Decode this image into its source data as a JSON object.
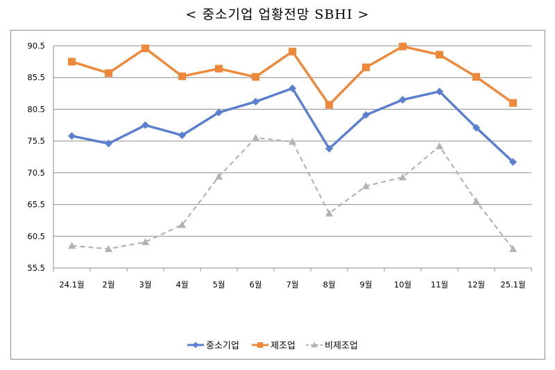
{
  "title": "< 중소기업  업황전망  SBHI  >",
  "chart_data": {
    "type": "line",
    "title": "< 중소기업  업황전망  SBHI  >",
    "categories": [
      "24.1월",
      "2월",
      "3월",
      "4월",
      "5월",
      "6월",
      "7월",
      "8월",
      "9월",
      "10월",
      "11월",
      "12월",
      "25.1월"
    ],
    "ylim": [
      55.5,
      90.5
    ],
    "yticks": [
      55.5,
      60.5,
      65.5,
      70.5,
      75.5,
      80.5,
      85.5,
      90.5
    ],
    "grid": true,
    "legend_position": "bottom",
    "series": [
      {
        "name": "중소기업",
        "color": "#5b7fd0",
        "marker": "diamond",
        "dashed": false,
        "values": [
          76.3,
          75.1,
          78.0,
          76.4,
          80.0,
          81.7,
          83.8,
          74.3,
          79.6,
          82.0,
          83.3,
          77.6,
          72.2
        ]
      },
      {
        "name": "제조업",
        "color": "#f0883a",
        "marker": "square",
        "dashed": false,
        "values": [
          88.0,
          86.2,
          90.1,
          85.7,
          86.9,
          85.6,
          89.6,
          81.2,
          87.1,
          90.4,
          89.1,
          85.6,
          81.5
        ]
      },
      {
        "name": "비제조업",
        "color": "#b3b3b3",
        "marker": "triangle",
        "dashed": true,
        "values": [
          59.0,
          58.5,
          59.6,
          62.3,
          69.9,
          76.0,
          75.4,
          64.1,
          68.4,
          69.8,
          74.7,
          66.0,
          58.5
        ]
      }
    ]
  }
}
